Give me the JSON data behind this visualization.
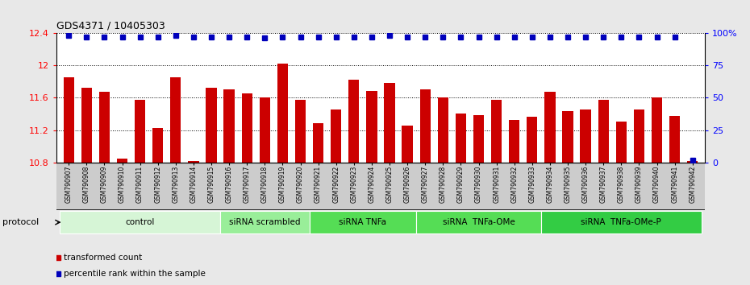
{
  "title": "GDS4371 / 10405303",
  "samples": [
    "GSM790907",
    "GSM790908",
    "GSM790909",
    "GSM790910",
    "GSM790911",
    "GSM790912",
    "GSM790913",
    "GSM790914",
    "GSM790915",
    "GSM790916",
    "GSM790917",
    "GSM790918",
    "GSM790919",
    "GSM790920",
    "GSM790921",
    "GSM790922",
    "GSM790923",
    "GSM790924",
    "GSM790925",
    "GSM790926",
    "GSM790927",
    "GSM790928",
    "GSM790929",
    "GSM790930",
    "GSM790931",
    "GSM790932",
    "GSM790933",
    "GSM790934",
    "GSM790935",
    "GSM790936",
    "GSM790937",
    "GSM790938",
    "GSM790939",
    "GSM790940",
    "GSM790941",
    "GSM790942"
  ],
  "bar_values": [
    11.85,
    11.72,
    11.67,
    10.85,
    11.57,
    11.22,
    11.85,
    10.82,
    11.72,
    11.7,
    11.65,
    11.6,
    12.02,
    11.57,
    11.28,
    11.45,
    11.82,
    11.68,
    11.78,
    11.25,
    11.7,
    11.6,
    11.4,
    11.38,
    11.57,
    11.32,
    11.36,
    11.67,
    11.43,
    11.45,
    11.57,
    11.3,
    11.45,
    11.6,
    11.37,
    10.82
  ],
  "percentile_values": [
    98,
    97,
    97,
    97,
    97,
    97,
    98,
    97,
    97,
    97,
    97,
    96,
    97,
    97,
    97,
    97,
    97,
    97,
    98,
    97,
    97,
    97,
    97,
    97,
    97,
    97,
    97,
    97,
    97,
    97,
    97,
    97,
    97,
    97,
    97,
    2
  ],
  "groups": [
    {
      "label": "control",
      "start": 0,
      "end": 8,
      "color": "#d6f5d6"
    },
    {
      "label": "siRNA scrambled",
      "start": 9,
      "end": 13,
      "color": "#99ee99"
    },
    {
      "label": "siRNA TNFa",
      "start": 14,
      "end": 19,
      "color": "#55dd55"
    },
    {
      "label": "siRNA  TNFa-OMe",
      "start": 20,
      "end": 26,
      "color": "#55dd55"
    },
    {
      "label": "siRNA  TNFa-OMe-P",
      "start": 27,
      "end": 35,
      "color": "#33cc44"
    }
  ],
  "bar_color": "#cc0000",
  "percentile_color": "#0000bb",
  "ylim": [
    10.8,
    12.4
  ],
  "y_ticks": [
    10.8,
    11.2,
    11.6,
    12.0,
    12.4
  ],
  "y_tick_labels": [
    "10.8",
    "11.2",
    "11.6",
    "12",
    "12.4"
  ],
  "right_ylim": [
    0,
    100
  ],
  "right_yticks": [
    0,
    25,
    50,
    75,
    100
  ],
  "right_yticklabels": [
    "0",
    "25",
    "50",
    "75",
    "100%"
  ],
  "bg_color": "#e8e8e8",
  "plot_bg": "#ffffff",
  "xtick_bg": "#cccccc",
  "legend_items": [
    {
      "color": "#cc0000",
      "label": "transformed count"
    },
    {
      "color": "#0000bb",
      "label": "percentile rank within the sample"
    }
  ]
}
